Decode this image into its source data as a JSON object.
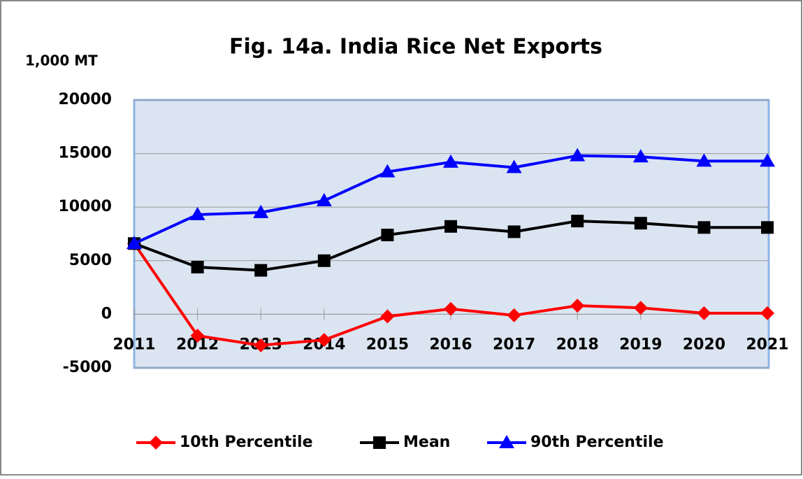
{
  "chart_data": {
    "type": "line",
    "title": "Fig. 14a.  India Rice Net Exports",
    "y_label": "1,000 MT",
    "categories": [
      "2011",
      "2012",
      "2013",
      "2014",
      "2015",
      "2016",
      "2017",
      "2018",
      "2019",
      "2020",
      "2021"
    ],
    "series": [
      {
        "name": "10th Percentile",
        "color": "#ff0000",
        "marker": "diamond",
        "values": [
          6600,
          -2000,
          -2900,
          -2400,
          -200,
          500,
          -100,
          800,
          600,
          100,
          100
        ]
      },
      {
        "name": "Mean",
        "color": "#000000",
        "marker": "square",
        "values": [
          6600,
          4400,
          4100,
          5000,
          7400,
          8200,
          7700,
          8700,
          8500,
          8100,
          8100
        ]
      },
      {
        "name": "90th Percentile",
        "color": "#0000ff",
        "marker": "triangle",
        "values": [
          6600,
          9300,
          9500,
          10600,
          13300,
          14200,
          13700,
          14800,
          14700,
          14300,
          14300
        ]
      }
    ],
    "ylim": [
      -5000,
      20000
    ],
    "yticks": [
      -5000,
      0,
      5000,
      10000,
      15000,
      20000
    ],
    "grid": true,
    "legend": "bottom"
  }
}
